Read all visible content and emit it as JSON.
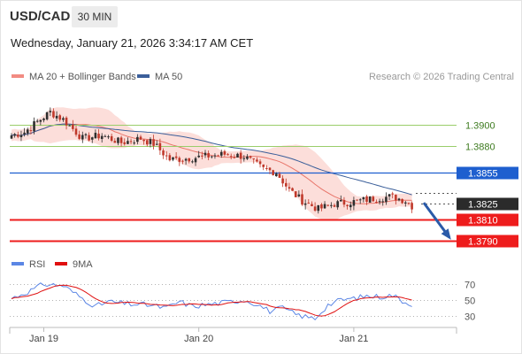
{
  "header": {
    "symbol": "USD/CAD",
    "timeframe": "30 MIN",
    "timestamp": "Wednesday, January 21, 2026 3:34:17 AM CET"
  },
  "credit": "Research © 2026 Trading Central",
  "colors": {
    "up_candle": "#2e2e2e",
    "down_candle": "#c0392b",
    "bollinger_fill": "#fbd3cd",
    "ma20": "#e8756a",
    "ma50": "#3b5f9a",
    "green_level": "#9acd6a",
    "pivot": "#1e5fcf",
    "support": "#ee1c1c",
    "rsi": "#5b86e5",
    "rsi_ma": "#e01010",
    "arrow": "#2a5aa8"
  },
  "chart_data": [
    {
      "type": "candlestick",
      "legend": [
        {
          "name": "MA 20 + Bollinger Bands",
          "color": "#f28b82"
        },
        {
          "name": "MA 50",
          "color": "#3b5f9a"
        }
      ],
      "ylim": [
        1.378,
        1.3925
      ],
      "levels": [
        {
          "value": 1.39,
          "label": "1.3900",
          "style": "green-line"
        },
        {
          "value": 1.388,
          "label": "1.3880",
          "style": "green-line"
        },
        {
          "value": 1.3855,
          "label": "1.3855",
          "style": "blue-badge"
        },
        {
          "value": 1.3825,
          "label": "1.3825",
          "style": "current-price"
        },
        {
          "value": 1.381,
          "label": "1.3810",
          "style": "red-badge"
        },
        {
          "value": 1.379,
          "label": "1.3790",
          "style": "red-badge"
        }
      ],
      "x_ticks": [
        {
          "label": "Jan 19",
          "index": 10
        },
        {
          "label": "Jan 20",
          "index": 58
        },
        {
          "label": "Jan 21",
          "index": 106
        }
      ],
      "n_bars": 125,
      "close_anchors": [
        [
          0,
          1.389
        ],
        [
          4,
          1.3893
        ],
        [
          8,
          1.3903
        ],
        [
          12,
          1.3912
        ],
        [
          16,
          1.3905
        ],
        [
          22,
          1.3887
        ],
        [
          28,
          1.389
        ],
        [
          34,
          1.3883
        ],
        [
          40,
          1.3887
        ],
        [
          44,
          1.3882
        ],
        [
          49,
          1.3867
        ],
        [
          54,
          1.3868
        ],
        [
          60,
          1.387
        ],
        [
          66,
          1.3872
        ],
        [
          72,
          1.387
        ],
        [
          78,
          1.3858
        ],
        [
          82,
          1.3855
        ],
        [
          86,
          1.3838
        ],
        [
          90,
          1.3828
        ],
        [
          95,
          1.382
        ],
        [
          100,
          1.3825
        ],
        [
          106,
          1.3827
        ],
        [
          112,
          1.383
        ],
        [
          118,
          1.3832
        ],
        [
          122,
          1.3828
        ],
        [
          124,
          1.3823
        ]
      ],
      "forecast_arrow": {
        "from": 1.3826,
        "to": 1.3793
      }
    },
    {
      "type": "line",
      "legend": [
        {
          "name": "RSI",
          "color": "#5b86e5"
        },
        {
          "name": "9MA",
          "color": "#e01010"
        }
      ],
      "ylim": [
        20,
        80
      ],
      "y_ticks": [
        70,
        50,
        30
      ],
      "rsi_anchors": [
        [
          0,
          52
        ],
        [
          6,
          62
        ],
        [
          10,
          70
        ],
        [
          16,
          68
        ],
        [
          22,
          52
        ],
        [
          26,
          42
        ],
        [
          30,
          48
        ],
        [
          36,
          45
        ],
        [
          42,
          44
        ],
        [
          48,
          40
        ],
        [
          52,
          48
        ],
        [
          56,
          42
        ],
        [
          60,
          44
        ],
        [
          66,
          47
        ],
        [
          72,
          50
        ],
        [
          76,
          45
        ],
        [
          80,
          36
        ],
        [
          84,
          40
        ],
        [
          88,
          32
        ],
        [
          92,
          28
        ],
        [
          94,
          27
        ],
        [
          98,
          44
        ],
        [
          102,
          50
        ],
        [
          106,
          52
        ],
        [
          110,
          55
        ],
        [
          114,
          54
        ],
        [
          118,
          56
        ],
        [
          122,
          47
        ],
        [
          124,
          45
        ]
      ]
    }
  ]
}
